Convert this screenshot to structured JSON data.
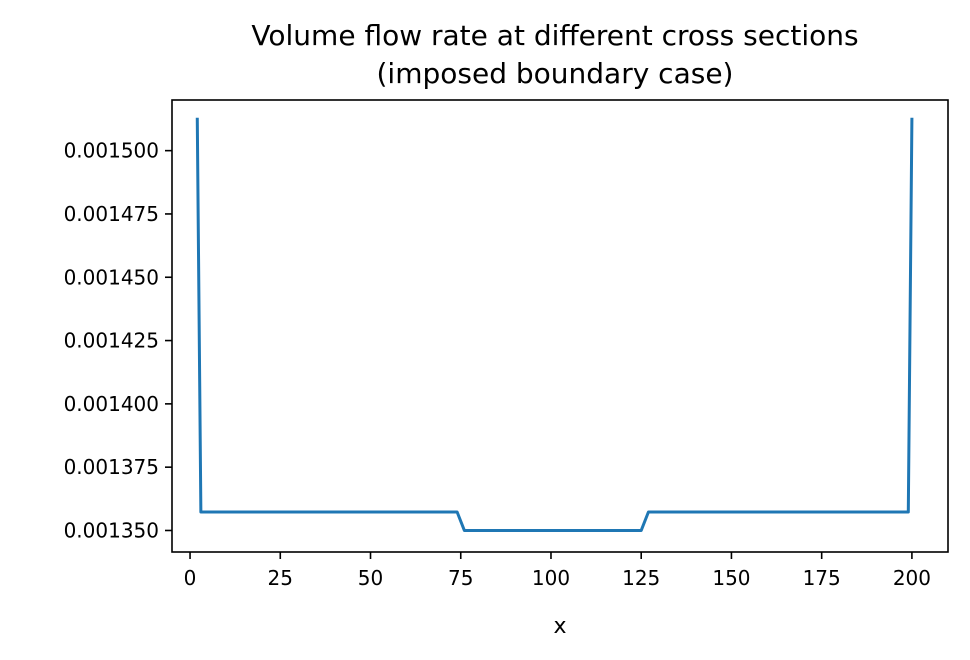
{
  "chart_data": {
    "type": "line",
    "title_line1": "Volume flow rate at different cross sections",
    "title_line2": "(imposed boundary case)",
    "xlabel": "x",
    "ylabel": "",
    "xlim": [
      -5,
      210
    ],
    "ylim": [
      0.0013415,
      0.00152
    ],
    "grid": false,
    "legend": "none",
    "line_color": "#1f77b4",
    "x_ticks": [
      0,
      25,
      50,
      75,
      100,
      125,
      150,
      175,
      200
    ],
    "x_tick_labels": [
      "0",
      "25",
      "50",
      "75",
      "100",
      "125",
      "150",
      "175",
      "200"
    ],
    "y_ticks": [
      0.00135,
      0.001375,
      0.0014,
      0.001425,
      0.00145,
      0.001475,
      0.0015
    ],
    "y_tick_labels": [
      "0.001350",
      "0.001375",
      "0.001400",
      "0.001425",
      "0.001450",
      "0.001475",
      "0.001500"
    ],
    "series": [
      {
        "x": [
          2,
          3,
          74,
          76,
          77,
          124,
          125,
          127,
          199,
          200
        ],
        "y": [
          0.001513,
          0.0013573,
          0.0013573,
          0.00135,
          0.00135,
          0.00135,
          0.00135,
          0.0013573,
          0.0013573,
          0.001513
        ]
      }
    ]
  }
}
